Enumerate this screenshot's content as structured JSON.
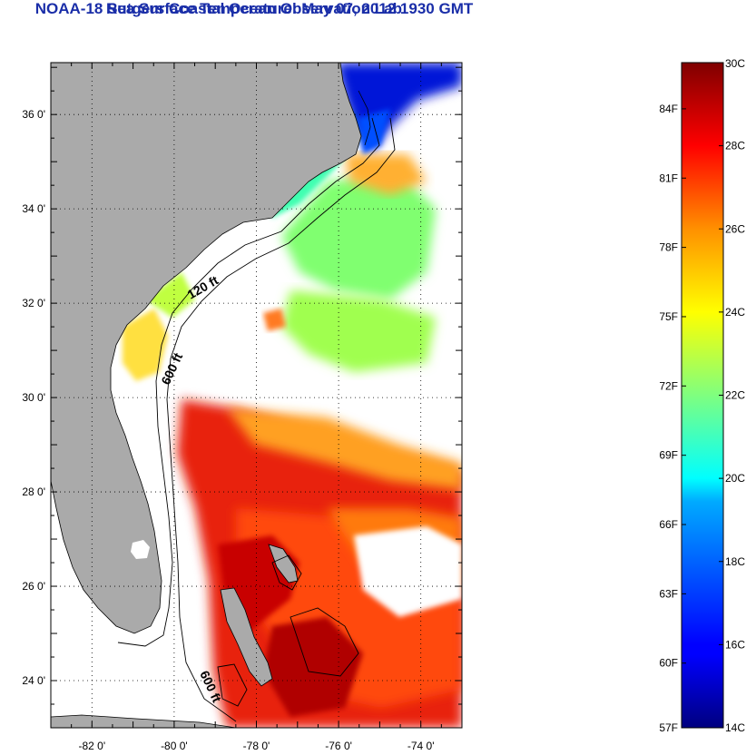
{
  "title": "NOAA-18 Sea Surface Temperature:  May 07, 2012 1930 GMT",
  "subtitle": "Rutgers Coastal Ocean Observation Lab",
  "map": {
    "lat_labels": [
      "36 0'",
      "34 0'",
      "32 0'",
      "30 0'",
      "28 0'",
      "26 0'",
      "24 0'"
    ],
    "lon_labels": [
      "-82 0'",
      "-80 0'",
      "-78 0'",
      "-76 0'",
      "-74 0'"
    ],
    "lat_values": [
      36,
      34,
      32,
      30,
      28,
      26,
      24
    ],
    "lon_values": [
      -82,
      -80,
      -78,
      -76,
      -74
    ],
    "lat_range": [
      23,
      37.1
    ],
    "lon_range": [
      -83,
      -73
    ],
    "contour_labels": [
      "120 ft",
      "600 ft",
      "600 ft"
    ],
    "land_color": "#aaaaaa",
    "no_data_color": "#ffffff"
  },
  "colorbar": {
    "celsius_labels": [
      "30C",
      "28C",
      "26C",
      "24C",
      "22C",
      "20C",
      "18C",
      "16C",
      "14C"
    ],
    "celsius_values": [
      30,
      28,
      26,
      24,
      22,
      20,
      18,
      16,
      14
    ],
    "fahrenheit_labels": [
      "84F",
      "81F",
      "78F",
      "75F",
      "72F",
      "69F",
      "66F",
      "63F",
      "60F",
      "57F"
    ],
    "fahrenheit_values": [
      84,
      81,
      78,
      75,
      72,
      69,
      66,
      63,
      60,
      57
    ],
    "range_c": [
      14,
      30
    ],
    "colormap": "jet"
  }
}
